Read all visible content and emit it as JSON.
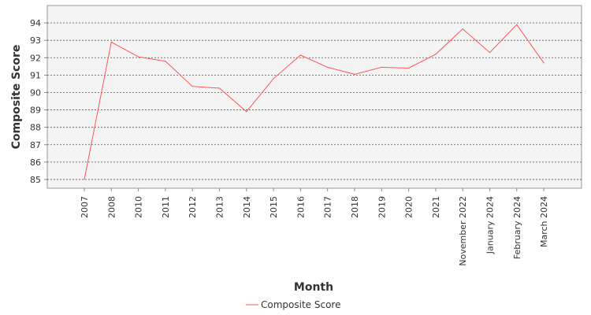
{
  "chart_data": {
    "type": "line",
    "title": "",
    "xlabel": "Month",
    "ylabel": "Composite Score",
    "categories": [
      "2007",
      "2008",
      "2010",
      "2011",
      "2012",
      "2013",
      "2014",
      "2015",
      "2016",
      "2017",
      "2018",
      "2019",
      "2020",
      "2021",
      "November 2022",
      "January 2024",
      "February 2024",
      "March 2024"
    ],
    "series": [
      {
        "name": "Composite Score",
        "color": "#ff5555",
        "values": [
          85.0,
          92.9,
          92.05,
          91.8,
          90.35,
          90.25,
          88.9,
          90.8,
          92.15,
          91.45,
          91.05,
          91.45,
          91.4,
          92.2,
          93.65,
          92.3,
          93.9,
          91.7
        ]
      }
    ],
    "ylim": [
      84.5,
      95.0
    ],
    "yticks": [
      85,
      86,
      87,
      88,
      89,
      90,
      91,
      92,
      93,
      94
    ],
    "grid": true,
    "legend_position": "bottom",
    "plot_background": "#f4f4f4"
  }
}
